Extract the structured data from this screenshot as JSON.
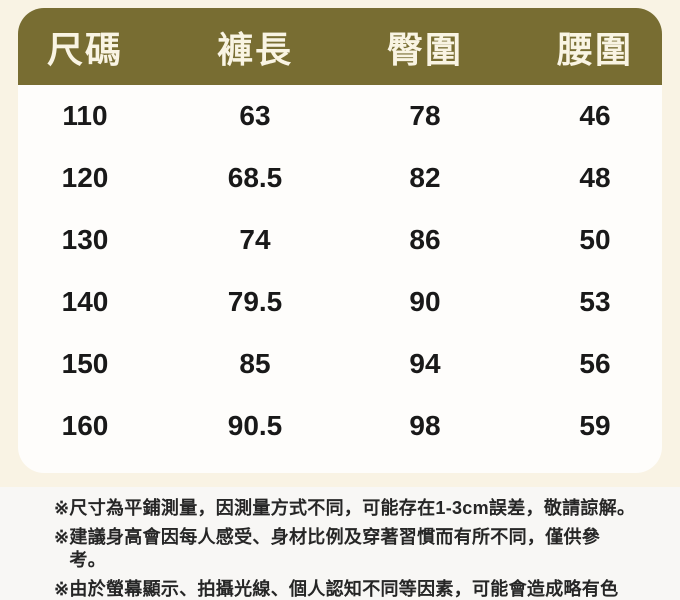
{
  "page": {
    "background_color": "#f9f3e4",
    "header_bg_color": "#786d32",
    "header_text_color": "#f9f4e3",
    "body_bg_color": "#fefdfb",
    "body_text_color": "#191919",
    "notes_bg_color": "#f8f7f5"
  },
  "chart_data": {
    "type": "table",
    "columns": [
      "尺碼",
      "褲長",
      "臀圍",
      "腰圍"
    ],
    "rows": [
      [
        "110",
        "63",
        "78",
        "46"
      ],
      [
        "120",
        "68.5",
        "82",
        "48"
      ],
      [
        "130",
        "74",
        "86",
        "50"
      ],
      [
        "140",
        "79.5",
        "90",
        "53"
      ],
      [
        "150",
        "85",
        "94",
        "56"
      ],
      [
        "160",
        "90.5",
        "98",
        "59"
      ]
    ]
  },
  "notes": {
    "items": [
      {
        "marker": "※",
        "text": "尺寸為平鋪測量，因測量方式不同，可能存在1-3cm誤差，敬請諒解。"
      },
      {
        "marker": "※",
        "text": "建議身高會因每人感受、身材比例及穿著習慣而有所不同，僅供參考。"
      },
      {
        "marker": "※",
        "text": "由於螢幕顯示、拍攝光線、個人認知不同等因素，可能會造成略有色差，請依收到實物顏色為準哦。"
      }
    ]
  }
}
